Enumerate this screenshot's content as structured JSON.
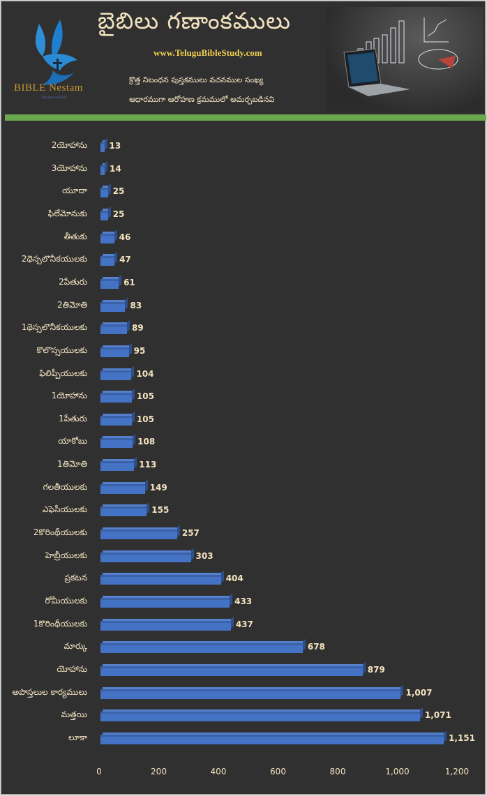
{
  "header": {
    "title": "బైబిలు గణాంకములు",
    "website": "www.TeluguBibleStudy.com",
    "subtitle_line1": "క్రొత్త నిబంధన పుస్తకములు వచనముల సంఖ్య",
    "subtitle_line2": "ఆధారముగా ఆరోహణ క్రమములో అమర్చబడినవి",
    "logo_text": "BIBLE Nestam",
    "logo_tagline": "Disciples of JESUS",
    "colors": {
      "title": "#f3e3c0",
      "website": "#f1d04e",
      "divider": "#6aa84f",
      "background": "#303030",
      "bar": "#4472c4"
    }
  },
  "chart_data": {
    "type": "bar",
    "orientation": "horizontal",
    "title": "బైబిలు గణాంకములు",
    "xlabel": "",
    "ylabel": "",
    "xlim": [
      0,
      1200
    ],
    "x_ticks": [
      "0",
      "200",
      "400",
      "600",
      "800",
      "1,000",
      "1,200"
    ],
    "grid": false,
    "legend": null,
    "categories": [
      "2యోహాను",
      "3యోహాను",
      "యూదా",
      "ఫిలేమోనుకు",
      "తీతుకు",
      "2థెస్సలొనీకయులకు",
      "2పేతురు",
      "2తిమోతి",
      "1థెస్సలొనీకయులకు",
      "కొలొస్సయులకు",
      "ఫిలిప్పీయులకు",
      "1యోహాను",
      "1పేతురు",
      "యాకోబు",
      "1తిమోతి",
      "గలతీయులకు",
      "ఎఫెసీయులకు",
      "2కొరింథీయులకు",
      "హెబ్రీయులకు",
      "ప్రకటన",
      "రోమీయులకు",
      "1కొరింథీయులకు",
      "మార్కు",
      "యోహాను",
      "అపొస్తలుల కార్యములు",
      "మత్తయి",
      "లూకా"
    ],
    "values": [
      13,
      14,
      25,
      25,
      46,
      47,
      61,
      83,
      89,
      95,
      104,
      105,
      105,
      108,
      113,
      149,
      155,
      257,
      303,
      404,
      433,
      437,
      678,
      879,
      1007,
      1071,
      1151
    ],
    "value_labels": [
      "13",
      "14",
      "25",
      "25",
      "46",
      "47",
      "61",
      "83",
      "89",
      "95",
      "104",
      "105",
      "105",
      "108",
      "113",
      "149",
      "155",
      "257",
      "303",
      "404",
      "433",
      "437",
      "678",
      "879",
      "1,007",
      "1,071",
      "1,151"
    ]
  }
}
